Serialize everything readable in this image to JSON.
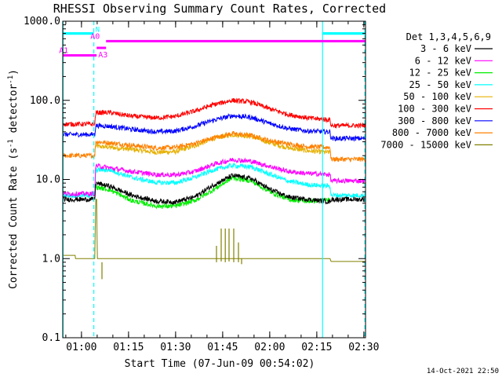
{
  "chart_data": {
    "type": "line",
    "title": "RHESSI Observing Summary Count Rates, Corrected",
    "xlabel": "Start Time (07-Jun-09 00:54:02)",
    "ylabel_main": "Corrected Count Rate (s",
    "ylabel_sup": "-1",
    "ylabel_mid": " detector",
    "ylabel_sup2": "-1",
    "ylabel_end": ")",
    "y_scale": "log",
    "ylim": [
      0.1,
      1000
    ],
    "xlim_minutes": [
      0,
      96.5
    ],
    "x_ticks": [
      {
        "minutes": 5.97,
        "label": "01:00"
      },
      {
        "minutes": 20.97,
        "label": "01:15"
      },
      {
        "minutes": 35.97,
        "label": "01:30"
      },
      {
        "minutes": 50.97,
        "label": "01:45"
      },
      {
        "minutes": 65.97,
        "label": "02:00"
      },
      {
        "minutes": 80.97,
        "label": "02:15"
      },
      {
        "minutes": 95.97,
        "label": "02:30"
      }
    ],
    "y_ticks": [
      {
        "value": 0.1,
        "label": "0.1"
      },
      {
        "value": 1,
        "label": "1.0"
      },
      {
        "value": 10,
        "label": "10.0"
      },
      {
        "value": 100,
        "label": "100.0"
      },
      {
        "value": 1000,
        "label": "1000.0"
      }
    ],
    "legend_title": "Det 1,3,4,5,6,9",
    "series": [
      {
        "name": "3 - 6 keV",
        "color": "#000000",
        "points": [
          [
            0,
            5.6
          ],
          [
            10.2,
            5.6
          ],
          [
            10.5,
            9.0
          ],
          [
            15,
            8.2
          ],
          [
            22,
            6.3
          ],
          [
            30,
            5.3
          ],
          [
            36,
            5.2
          ],
          [
            42,
            6.0
          ],
          [
            48,
            8.5
          ],
          [
            54,
            11.2
          ],
          [
            60,
            10.3
          ],
          [
            66,
            7.5
          ],
          [
            72,
            6.0
          ],
          [
            78,
            5.6
          ],
          [
            84,
            5.3
          ],
          [
            85.2,
            5.2
          ],
          [
            85.5,
            5.6
          ],
          [
            96.5,
            5.6
          ]
        ]
      },
      {
        "name": "6 - 12 keV",
        "color": "#ff00ff",
        "points": [
          [
            0,
            6.6
          ],
          [
            10.2,
            6.6
          ],
          [
            10.5,
            15.0
          ],
          [
            15,
            14.0
          ],
          [
            22,
            12.6
          ],
          [
            30,
            11.5
          ],
          [
            36,
            11.4
          ],
          [
            42,
            12.6
          ],
          [
            48,
            15.5
          ],
          [
            54,
            17.8
          ],
          [
            60,
            17.0
          ],
          [
            66,
            14.6
          ],
          [
            72,
            12.6
          ],
          [
            78,
            11.9
          ],
          [
            84,
            11.6
          ],
          [
            85.2,
            11.5
          ],
          [
            85.5,
            9.6
          ],
          [
            96.5,
            9.6
          ]
        ]
      },
      {
        "name": "12 - 25 keV",
        "color": "#00ee00",
        "points": [
          [
            10.5,
            8.0
          ],
          [
            15,
            7.4
          ],
          [
            22,
            5.4
          ],
          [
            30,
            4.6
          ],
          [
            36,
            4.6
          ],
          [
            42,
            5.4
          ],
          [
            48,
            7.4
          ],
          [
            54,
            10.5
          ],
          [
            60,
            9.6
          ],
          [
            66,
            7.0
          ],
          [
            72,
            5.6
          ],
          [
            78,
            5.3
          ],
          [
            84,
            5.5
          ],
          [
            85.2,
            5.6
          ]
        ]
      },
      {
        "name": "25 - 50 keV",
        "color": "#00ffff",
        "points": [
          [
            0,
            6.3
          ],
          [
            10.2,
            6.3
          ],
          [
            10.5,
            13.2
          ],
          [
            15,
            13.2
          ],
          [
            22,
            10.6
          ],
          [
            30,
            9.1
          ],
          [
            36,
            9.1
          ],
          [
            42,
            10.6
          ],
          [
            48,
            13.2
          ],
          [
            54,
            15.0
          ],
          [
            60,
            14.4
          ],
          [
            66,
            11.6
          ],
          [
            72,
            9.5
          ],
          [
            78,
            8.6
          ],
          [
            84,
            8.3
          ],
          [
            85.2,
            8.3
          ],
          [
            85.5,
            6.3
          ],
          [
            96.5,
            6.3
          ]
        ]
      },
      {
        "name": "50 - 100 keV",
        "color": "#e6b000",
        "points": [
          [
            10.5,
            26.3
          ],
          [
            15,
            25.5
          ],
          [
            22,
            24.0
          ],
          [
            30,
            22.0
          ],
          [
            36,
            22.5
          ],
          [
            42,
            26.5
          ],
          [
            48,
            33.0
          ],
          [
            54,
            37.0
          ],
          [
            60,
            35.0
          ],
          [
            66,
            29.0
          ],
          [
            72,
            25.0
          ],
          [
            78,
            23.0
          ],
          [
            84,
            22.0
          ],
          [
            85.2,
            22.0
          ]
        ]
      },
      {
        "name": "100 - 300 keV",
        "color": "#ff0000",
        "points": [
          [
            0,
            50
          ],
          [
            10.2,
            50
          ],
          [
            10.5,
            70
          ],
          [
            15,
            70
          ],
          [
            22,
            63
          ],
          [
            30,
            60
          ],
          [
            36,
            63
          ],
          [
            42,
            73
          ],
          [
            48,
            88
          ],
          [
            54,
            100
          ],
          [
            60,
            95
          ],
          [
            66,
            78
          ],
          [
            72,
            66
          ],
          [
            78,
            60
          ],
          [
            84,
            57
          ],
          [
            85.2,
            57
          ],
          [
            85.5,
            48
          ],
          [
            96.5,
            48
          ]
        ]
      },
      {
        "name": "300 - 800 keV",
        "color": "#0000ff",
        "points": [
          [
            0,
            37
          ],
          [
            10.2,
            37
          ],
          [
            10.5,
            48
          ],
          [
            15,
            47
          ],
          [
            22,
            43
          ],
          [
            30,
            40
          ],
          [
            36,
            41
          ],
          [
            42,
            47
          ],
          [
            48,
            56
          ],
          [
            54,
            64
          ],
          [
            60,
            61
          ],
          [
            66,
            51
          ],
          [
            72,
            44
          ],
          [
            78,
            41
          ],
          [
            84,
            40
          ],
          [
            85.2,
            40
          ],
          [
            85.5,
            33
          ],
          [
            96.5,
            33
          ]
        ]
      },
      {
        "name": "800 - 7000 keV",
        "color": "#ff8000",
        "points": [
          [
            0,
            20
          ],
          [
            10.2,
            20
          ],
          [
            10.5,
            30
          ],
          [
            15,
            29
          ],
          [
            22,
            27
          ],
          [
            30,
            25
          ],
          [
            36,
            25.5
          ],
          [
            42,
            28.5
          ],
          [
            48,
            33.5
          ],
          [
            54,
            38
          ],
          [
            60,
            36
          ],
          [
            66,
            31
          ],
          [
            72,
            28
          ],
          [
            78,
            26
          ],
          [
            84,
            25.5
          ],
          [
            85.2,
            25.5
          ],
          [
            85.5,
            18
          ],
          [
            96.5,
            18
          ]
        ]
      },
      {
        "name": "7000 - 15000 keV",
        "color": "#808000",
        "points": [
          [
            0,
            1.1
          ],
          [
            4.0,
            1.1
          ],
          [
            4.0,
            1.0
          ],
          [
            10.2,
            1.0
          ],
          [
            10.5,
            5.6
          ],
          [
            10.8,
            5.6
          ],
          [
            11.0,
            1.0
          ],
          [
            85.2,
            1.0
          ],
          [
            85.5,
            0.92
          ],
          [
            96.5,
            0.92
          ]
        ]
      }
    ],
    "attenuator_bars": [
      {
        "label": "A0",
        "color": "#ff00ff",
        "start": 13.8,
        "end": 96.5,
        "level": 560
      },
      {
        "label": "A1",
        "color": "#ff00ff",
        "start": 0,
        "end": 10.8,
        "level": 370
      },
      {
        "label": "A3",
        "color": "#ff00ff",
        "start": 10.8,
        "end": 13.8,
        "level": 460
      }
    ],
    "night_bars": [
      {
        "label": "N",
        "color": "#00ffff",
        "start": 0,
        "end": 9.9,
        "level": 700
      },
      {
        "label": "",
        "color": "#00ffff",
        "start": 82.8,
        "end": 96.5,
        "level": 700
      }
    ],
    "vertical_markers": [
      {
        "minutes": 0.1,
        "style": "solid",
        "color": "#00ffff"
      },
      {
        "minutes": 9.9,
        "style": "dashed",
        "color": "#00ffff"
      },
      {
        "minutes": 82.8,
        "style": "solid",
        "color": "#00ffff"
      },
      {
        "minutes": 96.3,
        "style": "dashed",
        "color": "#00ffff"
      }
    ]
  },
  "footer_timestamp": "14-Oct-2021 22:50"
}
